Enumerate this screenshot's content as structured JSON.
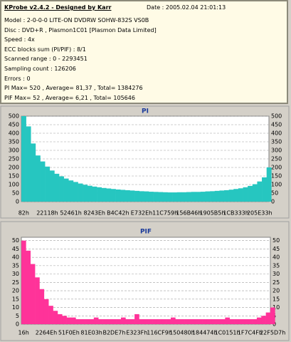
{
  "info": {
    "title": "KProbe v2.4.2 - Designed by Karr",
    "date": "Date : 2005.02.04 21:01:13",
    "lines": [
      "Model : 2-0-0-0 LITE-ON DVDRW SOHW-832S  VS0B",
      "Disc : DVD+R , Plasmon1C01 [Plasmon Data Limited]",
      "Speed : 4x",
      "ECC blocks sum (PI/PIF) : 8/1",
      "Scanned range : 0 - 2293451",
      "Sampling count : 126206",
      "Errors : 0",
      "PI Max= 520 , Average= 81,37 , Total= 1384276",
      "PIF Max= 52 , Average= 6,21 , Total= 105646"
    ]
  },
  "chart_data": [
    {
      "type": "bar",
      "title": "PI",
      "color": "#26c6c0",
      "ylim": [
        0,
        500
      ],
      "yticks": [
        0,
        50,
        100,
        150,
        200,
        250,
        300,
        350,
        400,
        450,
        500
      ],
      "grid": true,
      "categories": [
        "82h",
        null,
        null,
        null,
        null,
        "22118h",
        null,
        null,
        null,
        null,
        "52461h",
        null,
        null,
        null,
        null,
        "8243Eh",
        null,
        null,
        null,
        null,
        "B4C42h",
        null,
        null,
        null,
        null,
        "E732Eh",
        null,
        null,
        null,
        null,
        "11C759h",
        null,
        null,
        null,
        null,
        "156B46h",
        null,
        null,
        null,
        null,
        "1905B5h",
        null,
        null,
        null,
        null,
        "1CB333h",
        null,
        null,
        null,
        null,
        "205E33h",
        null,
        null
      ],
      "values": [
        500,
        440,
        340,
        270,
        235,
        205,
        182,
        163,
        148,
        135,
        124,
        115,
        106,
        99,
        93,
        88,
        84,
        80,
        77,
        74,
        71,
        69,
        67,
        65,
        63,
        61,
        60,
        58,
        57,
        56,
        55,
        54,
        54,
        55,
        55,
        56,
        57,
        57,
        58,
        60,
        61,
        63,
        65,
        67,
        70,
        74,
        78,
        84,
        92,
        102,
        118,
        142,
        200
      ]
    },
    {
      "type": "bar",
      "title": "PIF",
      "color": "#ff3399",
      "ylim": [
        0,
        52
      ],
      "yticks": [
        0,
        5,
        10,
        15,
        20,
        25,
        30,
        35,
        40,
        45,
        50
      ],
      "grid": true,
      "categories": [
        "16h",
        null,
        null,
        null,
        null,
        "2264Eh",
        null,
        null,
        null,
        null,
        "51F0Eh",
        null,
        null,
        null,
        null,
        "81E03h",
        null,
        null,
        null,
        null,
        "B2DE7h",
        null,
        null,
        null,
        null,
        "E323Fh",
        null,
        null,
        null,
        null,
        "116CF9h",
        null,
        null,
        null,
        null,
        "150480h",
        null,
        null,
        null,
        null,
        "184474h",
        null,
        null,
        null,
        null,
        "1C0151h",
        null,
        null,
        null,
        null,
        "1F7C4Fh",
        null,
        null,
        null,
        null,
        "22F5D7h"
      ],
      "values": [
        50,
        44,
        36,
        28,
        21,
        15,
        11,
        8,
        6,
        5,
        4,
        4,
        3,
        3,
        3,
        3,
        4,
        3,
        3,
        3,
        3,
        3,
        4,
        3,
        3,
        6,
        3,
        3,
        3,
        3,
        3,
        3,
        3,
        4,
        3,
        3,
        3,
        3,
        3,
        3,
        3,
        3,
        3,
        3,
        3,
        4,
        3,
        3,
        3,
        3,
        3,
        3,
        4,
        5,
        7,
        10
      ]
    }
  ]
}
